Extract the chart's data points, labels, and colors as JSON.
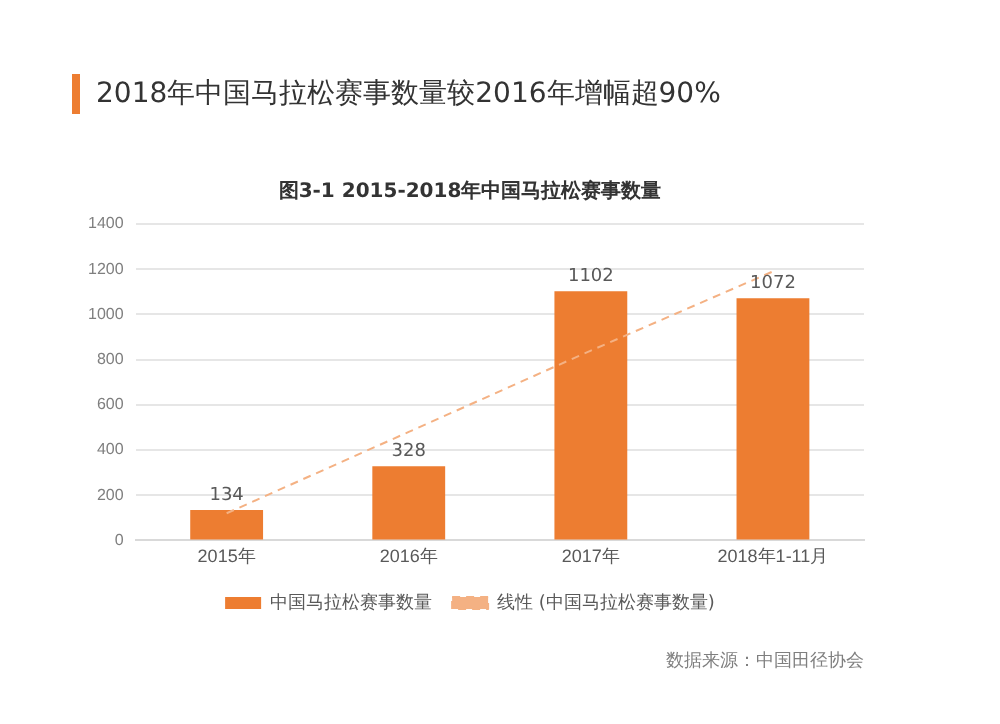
{
  "chart_data": {
    "type": "bar",
    "title": "2018年中国马拉松赛事数量较2016年增幅超90%",
    "subtitle": "图3-1 2015-2018年中国马拉松赛事数量",
    "categories": [
      "2015年",
      "2016年",
      "2017年",
      "2018年1-11月"
    ],
    "series": [
      {
        "name": "中国马拉松赛事数量",
        "color": "#ed7d31",
        "values": [
          134,
          328,
          1102,
          1072
        ],
        "value_labels": [
          "134",
          "328",
          "1102",
          "1072"
        ]
      },
      {
        "name": "线性 (中国马拉松赛事数量)",
        "type": "line",
        "color": "#f4b183",
        "line_style": "dashed",
        "marker": "none",
        "values": [
          120,
          480,
          840,
          1190
        ]
      }
    ],
    "ylim": [
      0,
      1400
    ],
    "yticks": [
      0,
      200,
      400,
      600,
      800,
      1000,
      1200,
      1400
    ],
    "grid": "y",
    "legend": "bottom",
    "annotations": [
      "数据来源：中国田径协会"
    ]
  }
}
